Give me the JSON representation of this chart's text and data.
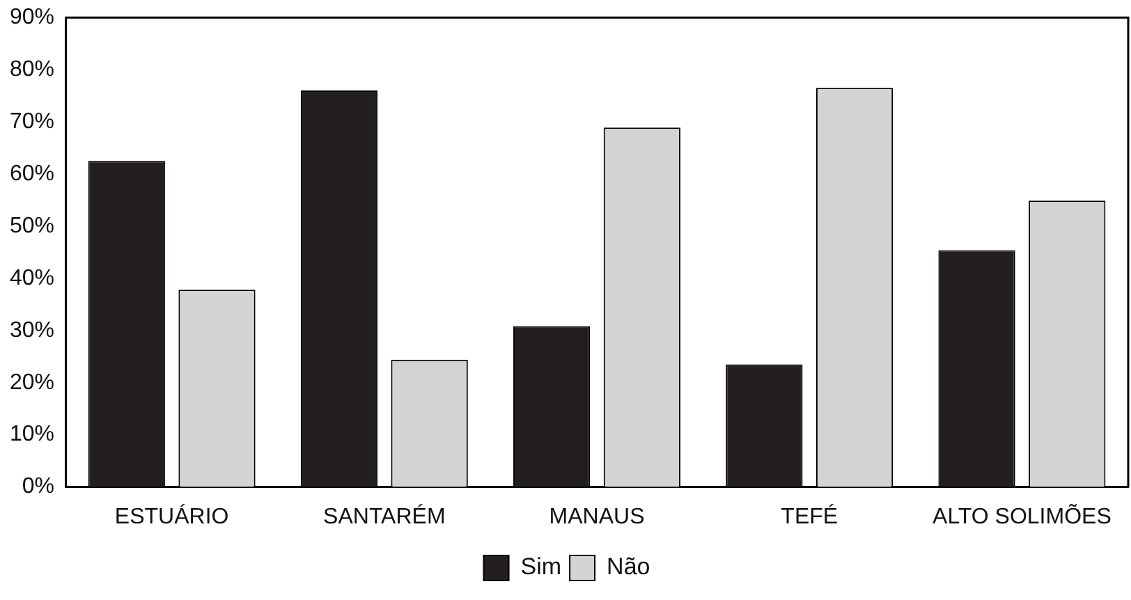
{
  "chart_data": {
    "type": "bar",
    "categories": [
      "ESTUÁRIO",
      "SANTARÉM",
      "MANAUS",
      "TEFÉ",
      "ALTO SOLIMÕES"
    ],
    "series": [
      {
        "name": "Sim",
        "color": "#231f20",
        "values": [
          62.5,
          76,
          30.8,
          23.5,
          45.4
        ]
      },
      {
        "name": "Não",
        "color": "#d4d4d4",
        "values": [
          37.8,
          24.4,
          68.9,
          76.5,
          54.9
        ]
      }
    ],
    "ylim": [
      0,
      90
    ],
    "yticks": [
      {
        "value": 0,
        "label": "0%"
      },
      {
        "value": 10,
        "label": "10%"
      },
      {
        "value": 20,
        "label": "20%"
      },
      {
        "value": 30,
        "label": "30%"
      },
      {
        "value": 40,
        "label": "40%"
      },
      {
        "value": 50,
        "label": "50%"
      },
      {
        "value": 60,
        "label": "60%"
      },
      {
        "value": 70,
        "label": "70%"
      },
      {
        "value": 80,
        "label": "80%"
      },
      {
        "value": 90,
        "label": "90%"
      }
    ],
    "grid": false,
    "legend": "bottom"
  }
}
